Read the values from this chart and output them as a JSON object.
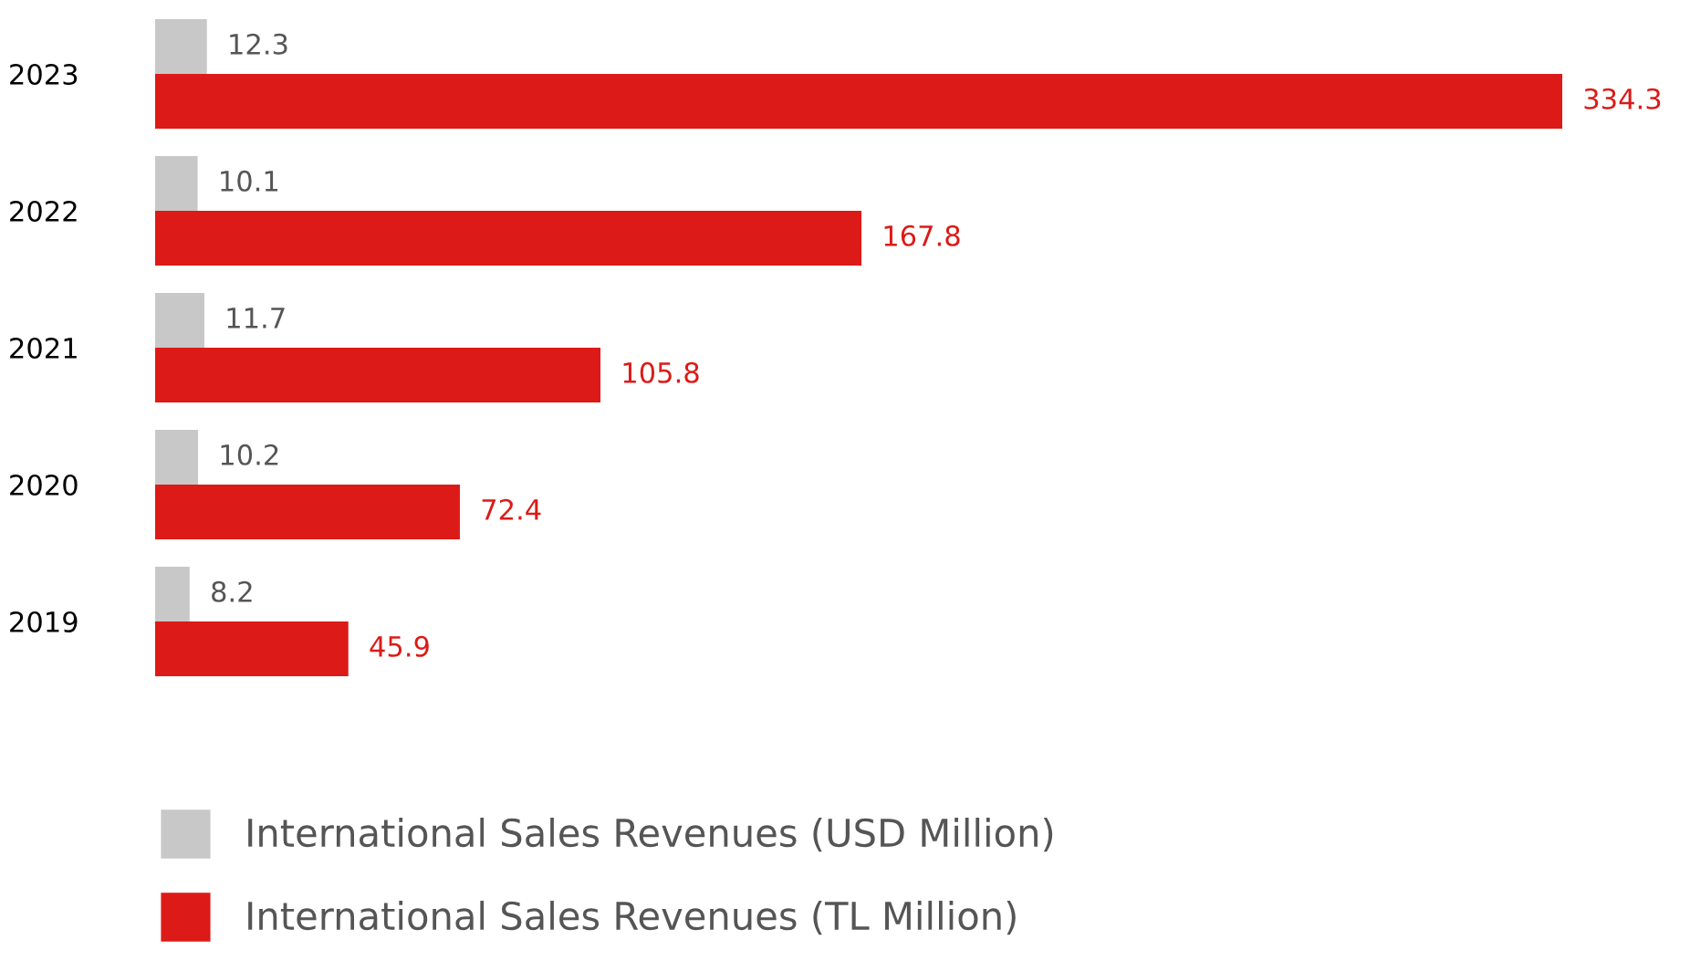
{
  "chart_data": {
    "type": "bar",
    "orientation": "horizontal",
    "categories": [
      "2023",
      "2022",
      "2021",
      "2020",
      "2019"
    ],
    "series": [
      {
        "name": "International Sales Revenues (USD Million)",
        "color": "#c8c8c8",
        "values": [
          12.3,
          10.1,
          11.7,
          10.2,
          8.2
        ]
      },
      {
        "name": "International Sales Revenues (TL Million)",
        "color": "#dc1a17",
        "values": [
          334.3,
          167.8,
          105.8,
          72.4,
          45.9
        ]
      }
    ],
    "data_labels": true,
    "legend": "bottom left",
    "grid": false,
    "tick_labels": "y"
  }
}
